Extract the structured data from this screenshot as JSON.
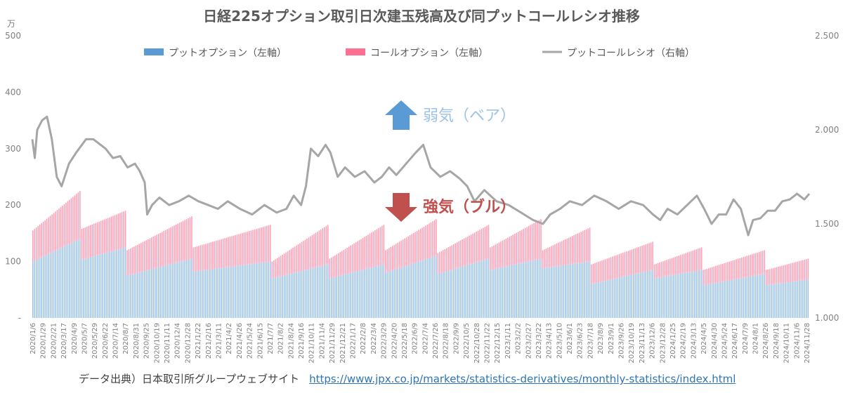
{
  "colors": {
    "put": "#9dc3e6",
    "call": "#ff9eb5",
    "ratio": "#a6a6a6",
    "bear_arrow": "#5b9bd5",
    "bull_arrow": "#c0504d"
  },
  "source": {
    "label": "データ出典）日本取引所グループウェブサイト",
    "url_text": "https://www.jpx.co.jp/markets/statistics-derivatives/monthly-statistics/index.html"
  },
  "annotations": {
    "bear": "弱気（ベア）",
    "bull": "強気（ブル）"
  },
  "chart_data": {
    "type": "bar",
    "title": "日経225オプション取引日次建玉残高及び同プットコールレシオ推移",
    "y_unit": "万",
    "ylim": [
      0,
      500
    ],
    "y_ticks": [
      "-",
      "100",
      "200",
      "300",
      "400",
      "500"
    ],
    "y2lim": [
      1.0,
      2.5
    ],
    "y2_ticks": [
      "1.000",
      "1.500",
      "2.000",
      "2.500"
    ],
    "legend_position": "top",
    "stacked": true,
    "x_tick_labels": [
      "2020/1/6",
      "2020/1/29",
      "2020/2/21",
      "2020/3/17",
      "2020/4/9",
      "2020/5/7",
      "2020/5/29",
      "2020/6/22",
      "2020/7/14",
      "2020/8/7",
      "2020/8/31",
      "2020/9/25",
      "2020/10/19",
      "2020/11/11",
      "2020/12/4",
      "2020/12/28",
      "2021/1/22",
      "2021/2/16",
      "2021/3/11",
      "2021/4/2",
      "2021/4/26",
      "2021/5/24",
      "2021/6/15",
      "2021/7/7",
      "2021/8/2",
      "2021/8/24",
      "2021/9/16",
      "2021/10/11",
      "2021/11/4",
      "2021/11/29",
      "2021/12/21",
      "2022/1/17",
      "2022/2/8",
      "2022/3/4",
      "2022/3/29",
      "2022/4/20",
      "2022/5/18",
      "2022/6/9",
      "2022/7/4",
      "2022/7/26",
      "2022/8/18",
      "2022/9/9",
      "2022/10/5",
      "2022/10/28",
      "2022/11/22",
      "2022/12/15",
      "2023/1/11",
      "2023/2/2",
      "2023/2/27",
      "2023/3/22",
      "2023/4/13",
      "2023/5/10",
      "2023/6/1",
      "2023/6/23",
      "2023/7/18",
      "2023/8/9",
      "2023/9/1",
      "2023/9/26",
      "2023/10/19",
      "2023/11/13",
      "2023/12/6",
      "2023/12/28",
      "2024/1/25",
      "2024/2/19",
      "2024/3/13",
      "2024/4/5",
      "2024/4/30",
      "2024/5/24",
      "2024/6/17",
      "2024/7/9",
      "2024/8/1",
      "2024/8/26",
      "2024/9/18",
      "2024/10/11",
      "2024/11/6",
      "2024/11/28"
    ],
    "segments": [
      {
        "put": [
          100,
          140
        ],
        "total": [
          155,
          225
        ],
        "bars": 28
      },
      {
        "put": [
          103,
          125
        ],
        "total": [
          158,
          190
        ],
        "bars": 26
      },
      {
        "put": [
          75,
          105
        ],
        "total": [
          120,
          180
        ],
        "bars": 38
      },
      {
        "put": [
          82,
          100
        ],
        "total": [
          125,
          165
        ],
        "bars": 45
      },
      {
        "put": [
          70,
          95
        ],
        "total": [
          100,
          165
        ],
        "bars": 33
      },
      {
        "put": [
          70,
          95
        ],
        "total": [
          105,
          165
        ],
        "bars": 32
      },
      {
        "put": [
          80,
          110
        ],
        "total": [
          120,
          175
        ],
        "bars": 30
      },
      {
        "put": [
          78,
          105
        ],
        "total": [
          115,
          165
        ],
        "bars": 30
      },
      {
        "put": [
          85,
          105
        ],
        "total": [
          125,
          175
        ],
        "bars": 30
      },
      {
        "put": [
          88,
          100
        ],
        "total": [
          120,
          160
        ],
        "bars": 28
      },
      {
        "put": [
          60,
          85
        ],
        "total": [
          95,
          135
        ],
        "bars": 36
      },
      {
        "put": [
          70,
          85
        ],
        "total": [
          95,
          125
        ],
        "bars": 28
      },
      {
        "put": [
          58,
          78
        ],
        "total": [
          85,
          120
        ],
        "bars": 36
      },
      {
        "put": [
          58,
          68
        ],
        "total": [
          85,
          105
        ],
        "bars": 25
      }
    ],
    "series": [
      {
        "name": "プットオプション（左軸）",
        "axis": "left"
      },
      {
        "name": "コールオプション（左軸）",
        "axis": "left"
      },
      {
        "name": "プットコールレシオ（右軸）",
        "axis": "right",
        "type": "line",
        "anchors": [
          [
            0,
            1.95
          ],
          [
            2,
            1.85
          ],
          [
            4,
            2.0
          ],
          [
            8,
            2.05
          ],
          [
            12,
            2.07
          ],
          [
            16,
            1.95
          ],
          [
            20,
            1.75
          ],
          [
            24,
            1.7
          ],
          [
            30,
            1.82
          ],
          [
            36,
            1.88
          ],
          [
            44,
            1.95
          ],
          [
            50,
            1.95
          ],
          [
            60,
            1.9
          ],
          [
            66,
            1.85
          ],
          [
            72,
            1.86
          ],
          [
            78,
            1.8
          ],
          [
            84,
            1.82
          ],
          [
            88,
            1.78
          ],
          [
            92,
            1.72
          ],
          [
            94,
            1.55
          ],
          [
            98,
            1.6
          ],
          [
            104,
            1.64
          ],
          [
            112,
            1.6
          ],
          [
            120,
            1.62
          ],
          [
            128,
            1.65
          ],
          [
            136,
            1.62
          ],
          [
            144,
            1.6
          ],
          [
            152,
            1.58
          ],
          [
            160,
            1.62
          ],
          [
            170,
            1.58
          ],
          [
            180,
            1.55
          ],
          [
            190,
            1.6
          ],
          [
            200,
            1.56
          ],
          [
            208,
            1.58
          ],
          [
            214,
            1.65
          ],
          [
            220,
            1.6
          ],
          [
            224,
            1.7
          ],
          [
            228,
            1.9
          ],
          [
            234,
            1.86
          ],
          [
            240,
            1.92
          ],
          [
            244,
            1.88
          ],
          [
            250,
            1.75
          ],
          [
            256,
            1.8
          ],
          [
            264,
            1.75
          ],
          [
            272,
            1.78
          ],
          [
            280,
            1.72
          ],
          [
            286,
            1.75
          ],
          [
            292,
            1.8
          ],
          [
            298,
            1.76
          ],
          [
            306,
            1.82
          ],
          [
            314,
            1.88
          ],
          [
            320,
            1.92
          ],
          [
            326,
            1.8
          ],
          [
            334,
            1.75
          ],
          [
            342,
            1.78
          ],
          [
            350,
            1.74
          ],
          [
            356,
            1.7
          ],
          [
            362,
            1.62
          ],
          [
            370,
            1.68
          ],
          [
            380,
            1.62
          ],
          [
            390,
            1.6
          ],
          [
            400,
            1.56
          ],
          [
            410,
            1.52
          ],
          [
            418,
            1.5
          ],
          [
            424,
            1.55
          ],
          [
            432,
            1.58
          ],
          [
            440,
            1.62
          ],
          [
            450,
            1.6
          ],
          [
            460,
            1.65
          ],
          [
            470,
            1.62
          ],
          [
            480,
            1.58
          ],
          [
            490,
            1.62
          ],
          [
            500,
            1.6
          ],
          [
            508,
            1.55
          ],
          [
            514,
            1.52
          ],
          [
            520,
            1.58
          ],
          [
            528,
            1.55
          ],
          [
            536,
            1.6
          ],
          [
            544,
            1.65
          ],
          [
            550,
            1.58
          ],
          [
            556,
            1.5
          ],
          [
            562,
            1.55
          ],
          [
            568,
            1.55
          ],
          [
            574,
            1.63
          ],
          [
            580,
            1.58
          ],
          [
            586,
            1.44
          ],
          [
            590,
            1.52
          ],
          [
            596,
            1.53
          ],
          [
            602,
            1.57
          ],
          [
            608,
            1.57
          ],
          [
            614,
            1.62
          ],
          [
            620,
            1.63
          ],
          [
            626,
            1.66
          ],
          [
            632,
            1.63
          ],
          [
            636,
            1.66
          ]
        ]
      }
    ]
  }
}
